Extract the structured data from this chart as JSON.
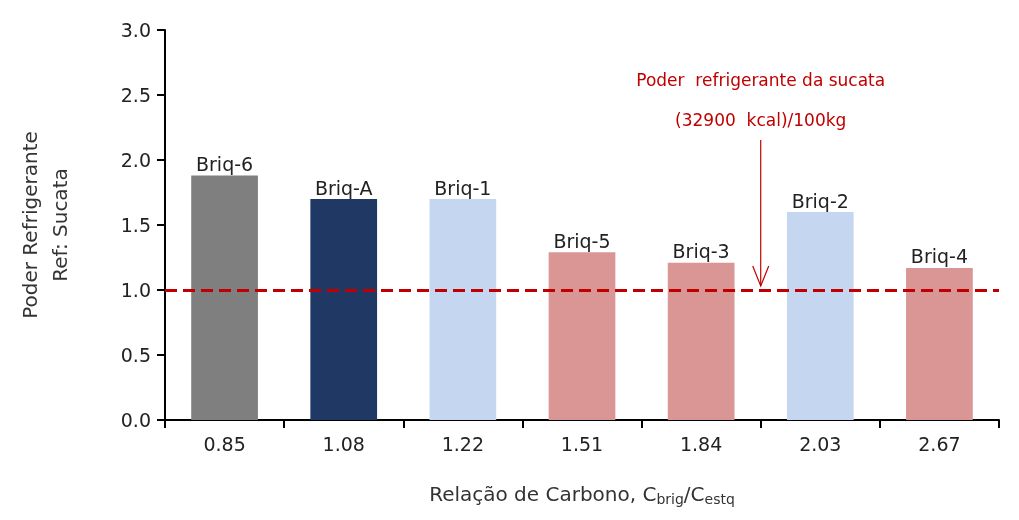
{
  "chart_data": {
    "type": "bar",
    "xlabel": "Relação de Carbono, C$_{brig}$/C$_{estq}$",
    "ylabel": "Poder Refrigerante\nRef: Sucata",
    "categories": [
      "0.85",
      "1.08",
      "1.22",
      "1.51",
      "1.84",
      "2.03",
      "2.67"
    ],
    "values": [
      1.88,
      1.7,
      1.7,
      1.29,
      1.21,
      1.6,
      1.17
    ],
    "colors": [
      "#7f7f7f",
      "#1f3864",
      "#c5d7f0",
      "#d99694",
      "#d99694",
      "#c5d7f0",
      "#d99694"
    ],
    "value_labels": [
      "Briq-6",
      "Briq-A",
      "Briq-1",
      "Briq-5",
      "Briq-3",
      "Briq-2",
      "Briq-4"
    ],
    "ylim": [
      0,
      3
    ],
    "yticks": [
      {
        "value": 0,
        "label": "0.0"
      },
      0.5,
      {
        "value": 1,
        "label": "1.0"
      },
      1.5,
      {
        "value": 2,
        "label": "2.0"
      },
      2.5,
      {
        "value": 3,
        "label": "3.0"
      }
    ],
    "ref_lines": [
      {
        "axis": "y",
        "value": 1,
        "label": "Poder  refrigerante da sucata\n(32900  kcal)/100kg",
        "color": "#c00000",
        "line_style": "dashed"
      }
    ],
    "grid": false
  }
}
